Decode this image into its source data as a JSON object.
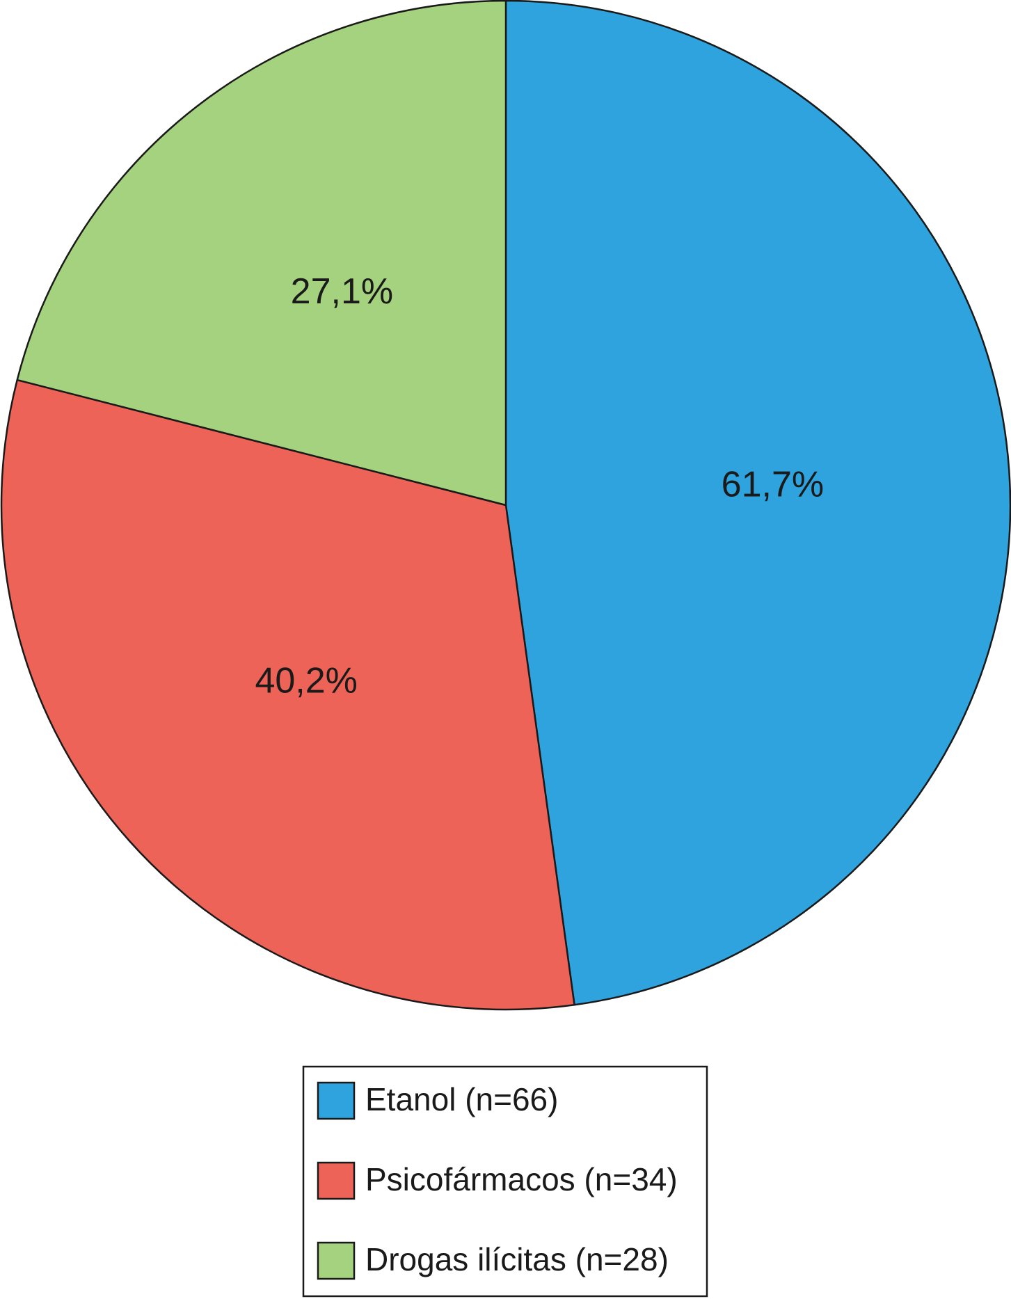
{
  "chart_data": {
    "type": "pie",
    "slices": [
      {
        "name": "Etanol (n=66)",
        "value": 61.7,
        "label": "61,7%",
        "color": "#2ea3dd"
      },
      {
        "name": "Psicofármacos (n=34)",
        "value": 40.2,
        "label": "40,2%",
        "color": "#ee6357"
      },
      {
        "name": "Drogas ilícitas (n=28)",
        "value": 27.1,
        "label": "27,1%",
        "color": "#a5d27e"
      }
    ],
    "legend": {
      "position": "bottom-center",
      "entries": [
        "Etanol (n=66)",
        "Psicofármacos (n=34)",
        "Drogas ilícitas (n=28)"
      ]
    },
    "start_angle": "top",
    "direction": "clockwise"
  }
}
